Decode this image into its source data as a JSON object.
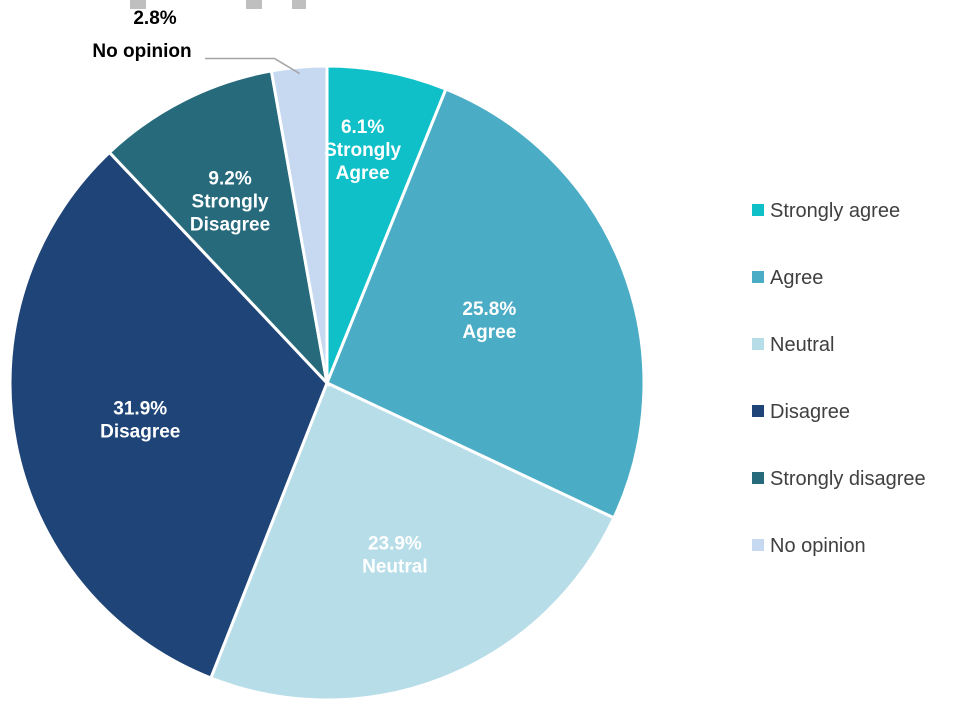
{
  "chart_data": {
    "type": "pie",
    "title": "",
    "start_angle_deg": 0,
    "direction": "clockwise",
    "slices": [
      {
        "name": "Strongly agree",
        "value": 6.1,
        "percent_label": "6.1%",
        "label_lines": [
          "Strongly",
          "Agree"
        ],
        "color": "#0FC0C8"
      },
      {
        "name": "Agree",
        "value": 25.8,
        "percent_label": "25.8%",
        "label_lines": [
          "Agree"
        ],
        "color": "#4BACC6"
      },
      {
        "name": "Neutral",
        "value": 23.9,
        "percent_label": "23.9%",
        "label_lines": [
          "Neutral"
        ],
        "color": "#B7DDE8"
      },
      {
        "name": "Disagree",
        "value": 31.9,
        "percent_label": "31.9%",
        "label_lines": [
          "Disagree"
        ],
        "color": "#1F4477"
      },
      {
        "name": "Strongly disagree",
        "value": 9.2,
        "percent_label": "9.2%",
        "label_lines": [
          "Strongly",
          "Disagree"
        ],
        "color": "#266A7C"
      },
      {
        "name": "No opinion",
        "value": 2.8,
        "percent_label": "2.8%",
        "label_lines": [
          "No opinion"
        ],
        "color": "#C6D9F1"
      }
    ],
    "legend": {
      "position": "right",
      "entries": [
        "Strongly agree",
        "Agree",
        "Neutral",
        "Disagree",
        "Strongly disagree",
        "No opinion"
      ]
    }
  }
}
